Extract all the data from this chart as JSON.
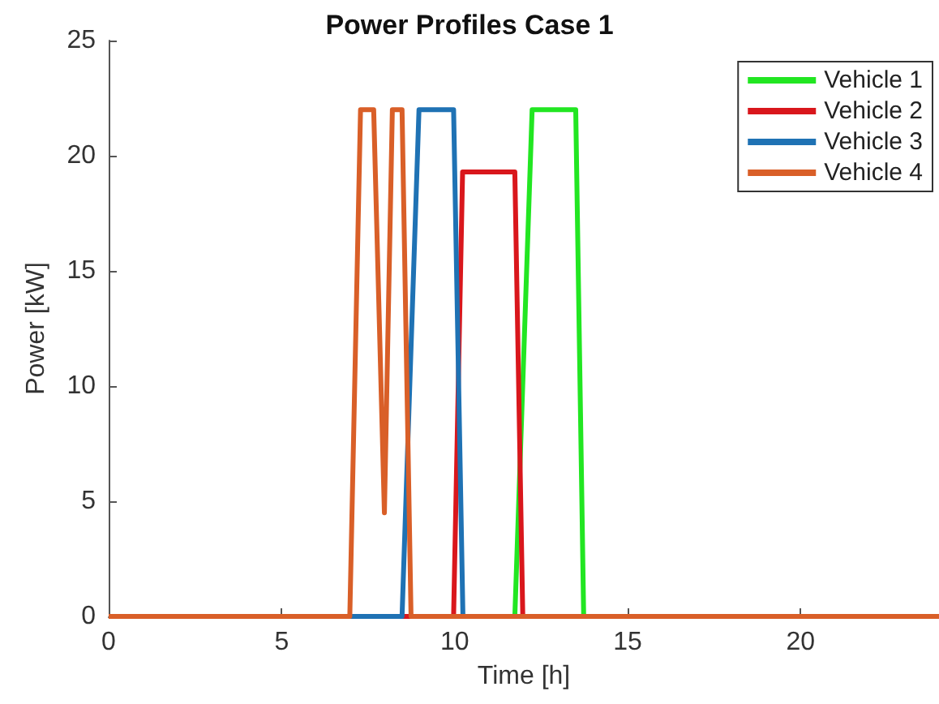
{
  "chart_data": {
    "type": "line",
    "title": "Power Profiles Case 1",
    "xlabel": "Time [h]",
    "ylabel": "Power [kW]",
    "xlim": [
      0,
      24
    ],
    "xticks": [
      0,
      5,
      10,
      15,
      20
    ],
    "ylim": [
      0,
      25
    ],
    "yticks": [
      0,
      5,
      10,
      15,
      20,
      25
    ],
    "grid": false,
    "legend": "top right",
    "marker": "none",
    "line_style": "solid",
    "series": [
      {
        "name": "Vehicle 1",
        "color": "#22e622",
        "x": [
          0,
          11.74,
          12.24,
          13.5,
          13.73,
          24
        ],
        "values": [
          0,
          0,
          22,
          22,
          0,
          0
        ]
      },
      {
        "name": "Vehicle 2",
        "color": "#d9171c",
        "x": [
          0,
          9.97,
          10.23,
          11.74,
          11.97,
          24
        ],
        "values": [
          0,
          0,
          19.3,
          19.3,
          0,
          0
        ]
      },
      {
        "name": "Vehicle 3",
        "color": "#1f72b4",
        "x": [
          0,
          8.48,
          8.97,
          9.97,
          10.24,
          24
        ],
        "values": [
          0,
          0,
          22,
          22,
          0,
          0
        ]
      },
      {
        "name": "Vehicle 4",
        "color": "#d95f28",
        "x": [
          0,
          6.97,
          7.28,
          7.66,
          7.97,
          8.2,
          8.48,
          8.74,
          24
        ],
        "values": [
          0,
          0,
          22,
          22,
          4.5,
          22,
          22,
          0,
          0
        ]
      }
    ]
  }
}
